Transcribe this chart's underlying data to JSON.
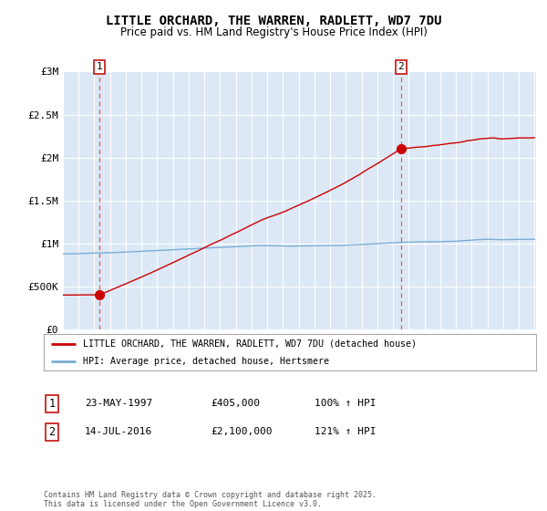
{
  "title": "LITTLE ORCHARD, THE WARREN, RADLETT, WD7 7DU",
  "subtitle": "Price paid vs. HM Land Registry's House Price Index (HPI)",
  "plot_bg_color": "#dce8f5",
  "legend_line1": "LITTLE ORCHARD, THE WARREN, RADLETT, WD7 7DU (detached house)",
  "legend_line2": "HPI: Average price, detached house, Hertsmere",
  "annotation1": "23-MAY-1997",
  "annotation1_price": "£405,000",
  "annotation1_hpi": "100% ↑ HPI",
  "annotation2": "14-JUL-2016",
  "annotation2_price": "£2,100,000",
  "annotation2_hpi": "121% ↑ HPI",
  "footnote": "Contains HM Land Registry data © Crown copyright and database right 2025.\nThis data is licensed under the Open Government Licence v3.0.",
  "x_start_year": 1995,
  "x_end_year": 2025,
  "ylim": [
    0,
    3000000
  ],
  "yticks": [
    0,
    500000,
    1000000,
    1500000,
    2000000,
    2500000,
    3000000
  ],
  "ytick_labels": [
    "£0",
    "£500K",
    "£1M",
    "£1.5M",
    "£2M",
    "£2.5M",
    "£3M"
  ],
  "red_line_color": "#cc0000",
  "blue_line_color": "#7aaed6",
  "dashed_line_color": "#ee4444",
  "marker1_year": 1997.37,
  "marker1_value": 405000,
  "marker2_year": 2016.54,
  "marker2_value": 2100000
}
